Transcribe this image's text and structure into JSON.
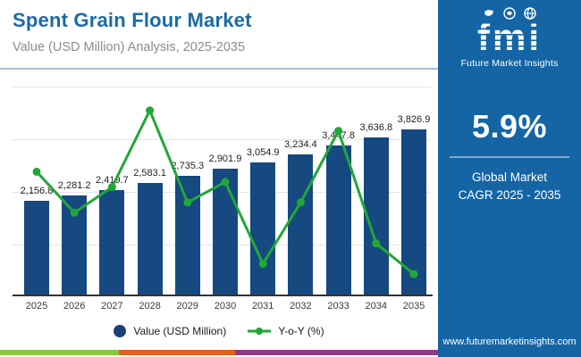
{
  "header": {
    "title": "Spent Grain Flour Market",
    "subtitle": "Value (USD Million) Analysis, 2025-2035"
  },
  "chart_data": {
    "type": "bar+line",
    "title": "Spent Grain Flour Market",
    "subtitle": "Value (USD Million) Analysis, 2025-2035",
    "categories": [
      "2025",
      "2026",
      "2027",
      "2028",
      "2029",
      "2030",
      "2031",
      "2032",
      "2033",
      "2034",
      "2035"
    ],
    "series": [
      {
        "name": "Value (USD Million)",
        "type": "bar",
        "values": [
          2156.8,
          2281.2,
          2419.7,
          2583.1,
          2735.3,
          2901.9,
          3054.9,
          3234.4,
          3447.8,
          3636.8,
          3826.9
        ],
        "labels": [
          "2,156.8",
          "2,281.2",
          "2,419.7",
          "2,583.1",
          "2,735.3",
          "2,901.9",
          "3,054.9",
          "3,234.4",
          "3,447.8",
          "3,636.8",
          "3,826.9"
        ],
        "color": "#15497f"
      },
      {
        "name": "Y-o-Y (%)",
        "type": "line",
        "values": [
          6.2,
          5.8,
          6.05,
          6.8,
          5.9,
          6.1,
          5.3,
          5.9,
          6.6,
          5.5,
          5.2
        ],
        "color": "#23a638"
      }
    ],
    "ylim": [
      0,
      4850
    ],
    "yoy_axis": [
      5.0,
      7.05
    ],
    "grid": true,
    "legend_position": "bottom"
  },
  "sidebar": {
    "logo": {
      "text": "fmi",
      "tagline": "Future Market Insights",
      "icons": [
        "map-icon",
        "compass-map-icon",
        "globe-icon"
      ]
    },
    "stat": {
      "value": "5.9%",
      "line1": "Global Market",
      "line2": "CAGR 2025 - 2035"
    },
    "website": "www.futuremarketinsights.com"
  },
  "colors": {
    "panel_bg": "#1565a5",
    "title": "#1b6ba6",
    "bar": "#15497f",
    "line": "#23a638",
    "legend_dot": "#1a4179",
    "stripe_green": "#8dc63f",
    "stripe_orange": "#e2611f",
    "stripe_purple": "#8e3a87"
  }
}
